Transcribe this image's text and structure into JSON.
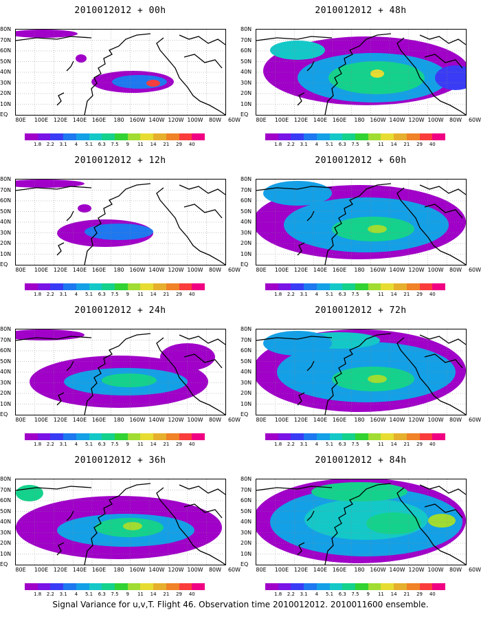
{
  "footer": "Signal Variance for u,v,T. Flight 46. Observation time 2010012012. 2010011600 ensemble.",
  "lat_labels": [
    "80N",
    "70N",
    "60N",
    "50N",
    "40N",
    "30N",
    "20N",
    "10N",
    "EQ"
  ],
  "lon_labels": [
    "80E",
    "100E",
    "120E",
    "140E",
    "160E",
    "180",
    "160W",
    "140W",
    "120W",
    "100W",
    "80W",
    "60W"
  ],
  "colorbar": {
    "labels": [
      "1.8",
      "2.2",
      "3.1",
      "4",
      "5.1",
      "6.3",
      "7.5",
      "9",
      "11",
      "14",
      "21",
      "29",
      "40"
    ],
    "colors": [
      "#a000c8",
      "#7a14e6",
      "#3a3cf5",
      "#1e78f0",
      "#14a0e6",
      "#14c8c8",
      "#14d28c",
      "#32d232",
      "#a0dc32",
      "#e6dc32",
      "#e6af2d",
      "#f08228",
      "#fa3c3c",
      "#f00082"
    ]
  },
  "panels": [
    {
      "title": "2010012012 + 00h"
    },
    {
      "title": "2010012012 + 48h"
    },
    {
      "title": "2010012012 + 12h"
    },
    {
      "title": "2010012012 + 60h"
    },
    {
      "title": "2010012012 + 24h"
    },
    {
      "title": "2010012012 + 72h"
    },
    {
      "title": "2010012012 + 36h"
    },
    {
      "title": "2010012012 + 84h"
    }
  ]
}
